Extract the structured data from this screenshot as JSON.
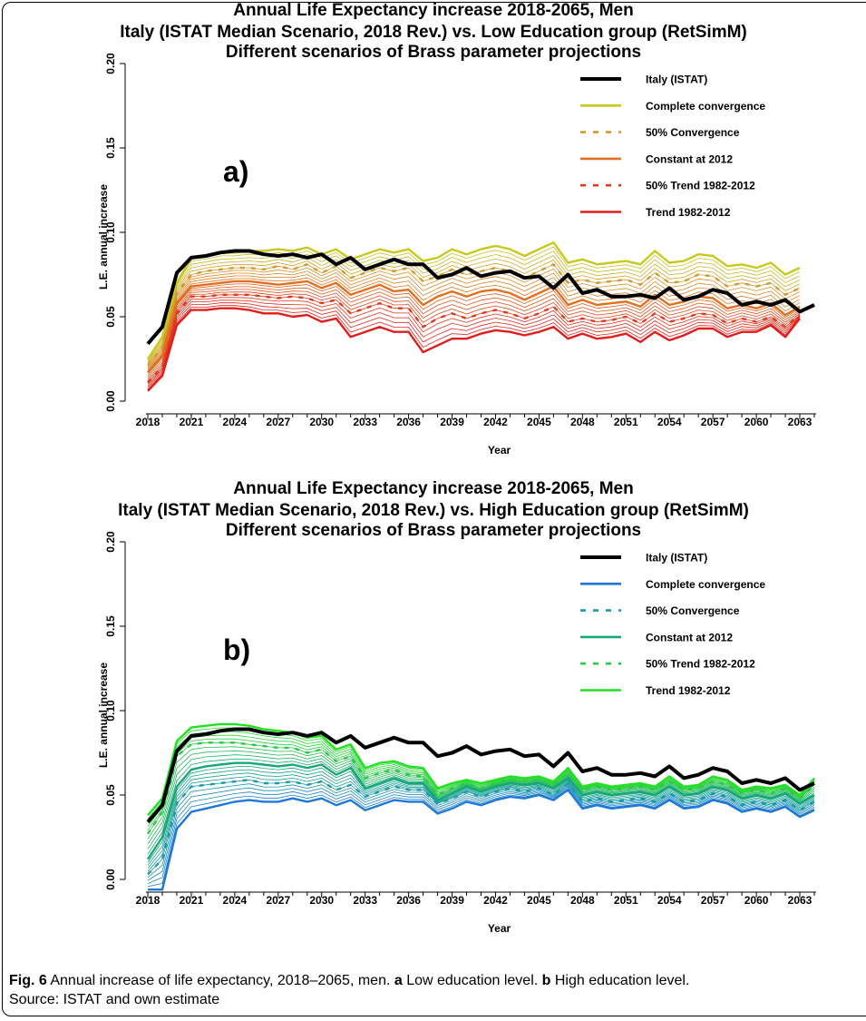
{
  "caption": {
    "fig_label": "Fig. 6",
    "text_1": " Annual increase of life expectancy, 2018–2065, men. ",
    "a_label": "a",
    "text_2": " Low education level. ",
    "b_label": "b",
    "text_3": " High education level.",
    "text_4": "Source: ISTAT and own estimate"
  },
  "chart_data": [
    {
      "type": "line",
      "panel_label": "a)",
      "title": [
        "Annual Life Expectancy increase 2018-2065, Men",
        "Italy (ISTAT Median Scenario, 2018 Rev.) vs. Low Education group (RetSimM)",
        "Different scenarios of Brass parameter projections"
      ],
      "xlabel": "Year",
      "ylabel": "L.E. annual increase",
      "xlim": [
        2018,
        2064
      ],
      "ylim": [
        0,
        0.2
      ],
      "x_ticks": [
        2018,
        2021,
        2024,
        2027,
        2030,
        2033,
        2036,
        2039,
        2042,
        2045,
        2048,
        2051,
        2054,
        2057,
        2060,
        2063
      ],
      "y_ticks": [
        "0.00",
        "0.05",
        "0.10",
        "0.15",
        "0.20"
      ],
      "legend_position": "top-right",
      "intermediate_band_lines": 20,
      "series": [
        {
          "name": "Italy (ISTAT)",
          "color": "#000000",
          "dash": "solid",
          "values": [
            0.034,
            0.044,
            0.076,
            0.085,
            0.086,
            0.088,
            0.089,
            0.089,
            0.087,
            0.086,
            0.087,
            0.085,
            0.087,
            0.081,
            0.085,
            0.078,
            0.081,
            0.084,
            0.081,
            0.081,
            0.073,
            0.075,
            0.079,
            0.074,
            0.076,
            0.077,
            0.073,
            0.074,
            0.067,
            0.075,
            0.064,
            0.066,
            0.062,
            0.062,
            0.063,
            0.061,
            0.067,
            0.06,
            0.062,
            0.066,
            0.064,
            0.057,
            0.059,
            0.057,
            0.06,
            0.053,
            0.057
          ]
        },
        {
          "name": "Complete convergence",
          "color": "#c8c81e",
          "dash": "solid",
          "values": [
            0.025,
            0.038,
            0.07,
            0.085,
            0.086,
            0.088,
            0.088,
            0.089,
            0.089,
            0.09,
            0.089,
            0.091,
            0.087,
            0.09,
            0.084,
            0.087,
            0.09,
            0.088,
            0.09,
            0.083,
            0.085,
            0.09,
            0.087,
            0.09,
            0.092,
            0.09,
            0.086,
            0.09,
            0.094,
            0.082,
            0.084,
            0.081,
            0.082,
            0.083,
            0.081,
            0.089,
            0.082,
            0.083,
            0.087,
            0.086,
            0.08,
            0.081,
            0.079,
            0.082,
            0.075,
            0.079
          ]
        },
        {
          "name": "50% Convergence",
          "color": "#d49a2e",
          "dash": "dotted",
          "values": [
            0.021,
            0.032,
            0.064,
            0.075,
            0.077,
            0.078,
            0.079,
            0.079,
            0.078,
            0.08,
            0.078,
            0.081,
            0.076,
            0.08,
            0.073,
            0.076,
            0.079,
            0.077,
            0.079,
            0.071,
            0.074,
            0.078,
            0.075,
            0.077,
            0.079,
            0.077,
            0.073,
            0.077,
            0.081,
            0.07,
            0.072,
            0.07,
            0.071,
            0.072,
            0.069,
            0.076,
            0.07,
            0.071,
            0.075,
            0.074,
            0.068,
            0.07,
            0.068,
            0.07,
            0.063,
            0.067
          ]
        },
        {
          "name": "Constant at 2012",
          "color": "#e07020",
          "dash": "solid",
          "values": [
            0.017,
            0.027,
            0.058,
            0.068,
            0.069,
            0.07,
            0.071,
            0.071,
            0.07,
            0.069,
            0.07,
            0.071,
            0.067,
            0.07,
            0.063,
            0.066,
            0.069,
            0.065,
            0.066,
            0.057,
            0.062,
            0.065,
            0.062,
            0.065,
            0.066,
            0.064,
            0.06,
            0.064,
            0.068,
            0.057,
            0.06,
            0.057,
            0.058,
            0.059,
            0.056,
            0.063,
            0.057,
            0.059,
            0.062,
            0.061,
            0.055,
            0.057,
            0.055,
            0.058,
            0.051,
            0.056
          ]
        },
        {
          "name": "50% Trend 1982-2012",
          "color": "#e03a1e",
          "dash": "dotted",
          "values": [
            0.011,
            0.02,
            0.052,
            0.062,
            0.062,
            0.063,
            0.063,
            0.063,
            0.062,
            0.061,
            0.062,
            0.061,
            0.058,
            0.06,
            0.052,
            0.055,
            0.058,
            0.055,
            0.055,
            0.044,
            0.049,
            0.052,
            0.049,
            0.052,
            0.054,
            0.052,
            0.049,
            0.052,
            0.056,
            0.047,
            0.049,
            0.047,
            0.048,
            0.05,
            0.046,
            0.052,
            0.047,
            0.049,
            0.052,
            0.051,
            0.046,
            0.049,
            0.047,
            0.05,
            0.044,
            0.051
          ]
        },
        {
          "name": "Trend 1982-2012",
          "color": "#e21c1c",
          "dash": "solid",
          "values": [
            0.006,
            0.015,
            0.045,
            0.054,
            0.054,
            0.055,
            0.055,
            0.054,
            0.052,
            0.052,
            0.05,
            0.051,
            0.047,
            0.049,
            0.038,
            0.041,
            0.044,
            0.041,
            0.041,
            0.029,
            0.033,
            0.037,
            0.037,
            0.04,
            0.042,
            0.041,
            0.039,
            0.041,
            0.044,
            0.037,
            0.04,
            0.037,
            0.038,
            0.04,
            0.035,
            0.041,
            0.036,
            0.039,
            0.043,
            0.043,
            0.038,
            0.041,
            0.041,
            0.045,
            0.038,
            0.049
          ]
        }
      ]
    },
    {
      "type": "line",
      "panel_label": "b)",
      "title": [
        "Annual Life Expectancy increase 2018-2065, Men",
        "Italy (ISTAT Median Scenario, 2018 Rev.) vs. High Education group (RetSimM)",
        "Different scenarios of Brass parameter projections"
      ],
      "xlabel": "Year",
      "ylabel": "L.E. annual increase",
      "xlim": [
        2018,
        2064
      ],
      "ylim": [
        0,
        0.2
      ],
      "x_ticks": [
        2018,
        2021,
        2024,
        2027,
        2030,
        2033,
        2036,
        2039,
        2042,
        2045,
        2048,
        2051,
        2054,
        2057,
        2060,
        2063
      ],
      "y_ticks": [
        "0.00",
        "0.05",
        "0.10",
        "0.15",
        "0.20"
      ],
      "legend_position": "top-right",
      "intermediate_band_lines": 20,
      "series": [
        {
          "name": "Italy (ISTAT)",
          "color": "#000000",
          "dash": "solid",
          "values": [
            0.034,
            0.044,
            0.076,
            0.085,
            0.086,
            0.088,
            0.089,
            0.089,
            0.087,
            0.086,
            0.087,
            0.085,
            0.087,
            0.081,
            0.085,
            0.078,
            0.081,
            0.084,
            0.081,
            0.081,
            0.073,
            0.075,
            0.079,
            0.074,
            0.076,
            0.077,
            0.073,
            0.074,
            0.067,
            0.075,
            0.064,
            0.066,
            0.062,
            0.062,
            0.063,
            0.061,
            0.067,
            0.06,
            0.062,
            0.066,
            0.064,
            0.057,
            0.059,
            0.057,
            0.06,
            0.053,
            0.057
          ]
        },
        {
          "name": "Complete convergence",
          "color": "#1e78d8",
          "dash": "solid",
          "values": [
            -0.006,
            -0.006,
            0.03,
            0.04,
            0.042,
            0.044,
            0.046,
            0.047,
            0.046,
            0.046,
            0.048,
            0.046,
            0.048,
            0.044,
            0.047,
            0.041,
            0.044,
            0.047,
            0.046,
            0.046,
            0.039,
            0.042,
            0.046,
            0.044,
            0.047,
            0.049,
            0.048,
            0.05,
            0.047,
            0.053,
            0.042,
            0.044,
            0.042,
            0.043,
            0.044,
            0.042,
            0.047,
            0.042,
            0.043,
            0.047,
            0.045,
            0.04,
            0.042,
            0.04,
            0.043,
            0.037,
            0.041
          ]
        },
        {
          "name": "50% Convergence",
          "color": "#1a9aaa",
          "dash": "dotted",
          "values": [
            0.003,
            0.012,
            0.045,
            0.055,
            0.056,
            0.057,
            0.058,
            0.059,
            0.057,
            0.057,
            0.058,
            0.056,
            0.058,
            0.053,
            0.056,
            0.049,
            0.052,
            0.055,
            0.053,
            0.053,
            0.045,
            0.048,
            0.052,
            0.049,
            0.052,
            0.054,
            0.052,
            0.054,
            0.05,
            0.057,
            0.046,
            0.048,
            0.046,
            0.047,
            0.048,
            0.046,
            0.051,
            0.046,
            0.047,
            0.051,
            0.049,
            0.044,
            0.046,
            0.044,
            0.047,
            0.041,
            0.046
          ]
        },
        {
          "name": "Constant at 2012",
          "color": "#18a878",
          "dash": "solid",
          "values": [
            0.012,
            0.025,
            0.055,
            0.065,
            0.067,
            0.068,
            0.069,
            0.069,
            0.068,
            0.067,
            0.068,
            0.066,
            0.068,
            0.062,
            0.066,
            0.054,
            0.057,
            0.06,
            0.057,
            0.057,
            0.047,
            0.051,
            0.055,
            0.052,
            0.055,
            0.057,
            0.056,
            0.057,
            0.054,
            0.06,
            0.05,
            0.052,
            0.05,
            0.051,
            0.052,
            0.05,
            0.055,
            0.05,
            0.051,
            0.055,
            0.053,
            0.048,
            0.05,
            0.048,
            0.051,
            0.045,
            0.05
          ]
        },
        {
          "name": "50% Trend 1982-2012",
          "color": "#2cc84a",
          "dash": "dotted",
          "values": [
            0.027,
            0.04,
            0.073,
            0.08,
            0.081,
            0.081,
            0.081,
            0.08,
            0.079,
            0.078,
            0.078,
            0.075,
            0.077,
            0.07,
            0.073,
            0.06,
            0.063,
            0.065,
            0.062,
            0.061,
            0.05,
            0.054,
            0.057,
            0.054,
            0.057,
            0.059,
            0.058,
            0.059,
            0.056,
            0.063,
            0.053,
            0.055,
            0.053,
            0.054,
            0.055,
            0.053,
            0.058,
            0.053,
            0.054,
            0.058,
            0.056,
            0.051,
            0.053,
            0.051,
            0.054,
            0.048,
            0.056
          ]
        },
        {
          "name": "Trend 1982-2012",
          "color": "#22e022",
          "dash": "solid",
          "values": [
            0.038,
            0.048,
            0.082,
            0.09,
            0.091,
            0.092,
            0.092,
            0.091,
            0.089,
            0.088,
            0.087,
            0.084,
            0.085,
            0.077,
            0.08,
            0.066,
            0.069,
            0.07,
            0.067,
            0.066,
            0.054,
            0.057,
            0.059,
            0.057,
            0.059,
            0.061,
            0.06,
            0.061,
            0.058,
            0.066,
            0.055,
            0.057,
            0.055,
            0.056,
            0.057,
            0.055,
            0.061,
            0.055,
            0.056,
            0.061,
            0.059,
            0.053,
            0.055,
            0.054,
            0.056,
            0.05,
            0.06
          ]
        }
      ]
    }
  ]
}
